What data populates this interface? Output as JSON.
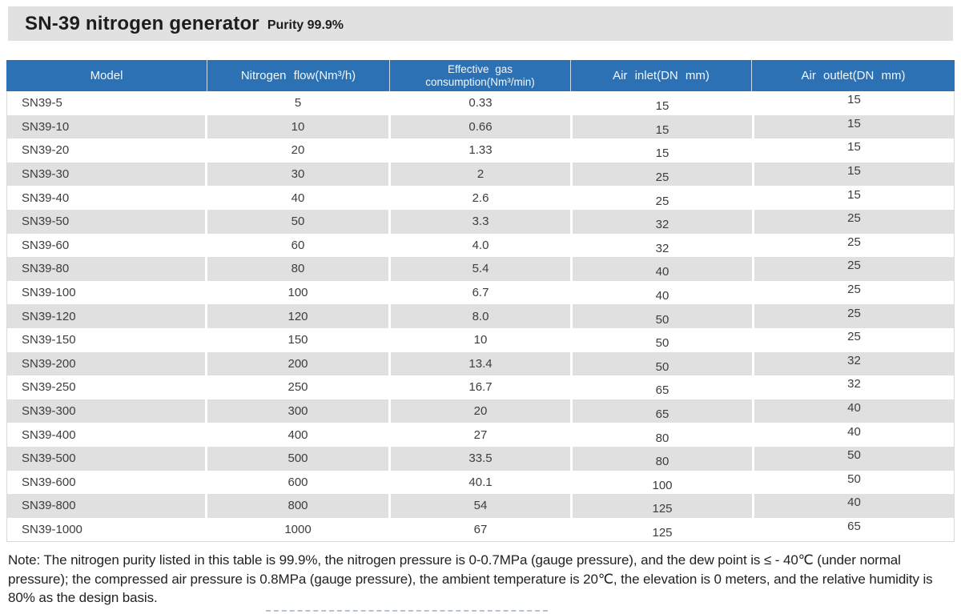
{
  "title": {
    "product": "SN-39 nitrogen generator",
    "purity": "Purity 99.9%"
  },
  "table": {
    "columns": [
      {
        "label": "Model"
      },
      {
        "label": "Nitrogen flow(Nm³/h)"
      },
      {
        "label_line1": "Effective gas",
        "label_line2": "consumption(Nm³/min)"
      },
      {
        "label": "Air inlet(DN mm)"
      },
      {
        "label": "Air outlet(DN mm)"
      }
    ],
    "rows": [
      [
        "SN39-5",
        "5",
        "0.33",
        "15",
        "15"
      ],
      [
        "SN39-10",
        "10",
        "0.66",
        "15",
        "15"
      ],
      [
        "SN39-20",
        "20",
        "1.33",
        "15",
        "15"
      ],
      [
        "SN39-30",
        "30",
        "2",
        "25",
        "15"
      ],
      [
        "SN39-40",
        "40",
        "2.6",
        "25",
        "15"
      ],
      [
        "SN39-50",
        "50",
        "3.3",
        "32",
        "25"
      ],
      [
        "SN39-60",
        "60",
        "4.0",
        "32",
        "25"
      ],
      [
        "SN39-80",
        "80",
        "5.4",
        "40",
        "25"
      ],
      [
        "SN39-100",
        "100",
        "6.7",
        "40",
        "25"
      ],
      [
        "SN39-120",
        "120",
        "8.0",
        "50",
        "25"
      ],
      [
        "SN39-150",
        "150",
        "10",
        "50",
        "25"
      ],
      [
        "SN39-200",
        "200",
        "13.4",
        "50",
        "32"
      ],
      [
        "SN39-250",
        "250",
        "16.7",
        "65",
        "32"
      ],
      [
        "SN39-300",
        "300",
        "20",
        "65",
        "40"
      ],
      [
        "SN39-400",
        "400",
        "27",
        "80",
        "40"
      ],
      [
        "SN39-500",
        "500",
        "33.5",
        "80",
        "50"
      ],
      [
        "SN39-600",
        "600",
        "40.1",
        "100",
        "50"
      ],
      [
        "SN39-800",
        "800",
        "54",
        "125",
        "40"
      ],
      [
        "SN39-1000",
        "1000",
        "67",
        "125",
        "65"
      ]
    ]
  },
  "note": "Note: The nitrogen purity listed in this table is 99.9%, the nitrogen pressure is 0-0.7MPa (gauge pressure), and the dew point is ≤ - 40℃ (under normal pressure); the compressed air pressure is 0.8MPa (gauge pressure), the ambient temperature is 20℃, the elevation is 0 meters, and the relative humidity is 80% as the design basis.",
  "colors": {
    "header_blue": "#2b71b4",
    "stripe_gray": "#e0e0e0",
    "title_bar_gray": "#e1e1e1",
    "body_text": "#3d3d3d"
  }
}
